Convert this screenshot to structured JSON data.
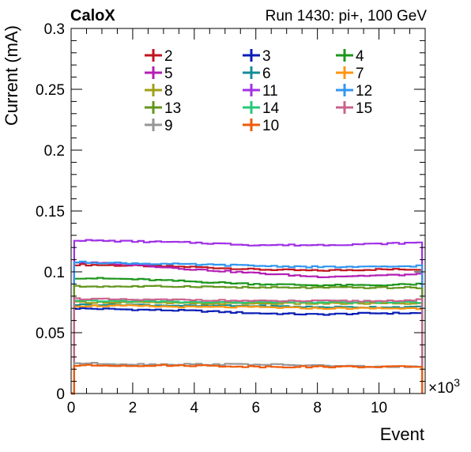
{
  "chart_data": {
    "type": "line",
    "title_left": "CaloX",
    "title_right": "Run 1430: pi+, 100 GeV",
    "xlabel": "Event",
    "ylabel": "Current (mA)",
    "x_multiplier": "×10",
    "x_multiplier_exp": "3",
    "xlim": [
      0,
      11.5
    ],
    "ylim": [
      0,
      0.3
    ],
    "x_ticks": [
      "0",
      "2",
      "4",
      "6",
      "8",
      "10"
    ],
    "y_ticks": [
      "0",
      "0.05",
      "0.1",
      "0.15",
      "0.2",
      "0.25",
      "0.3"
    ],
    "x_range": [
      0.1,
      11.4
    ],
    "series": [
      {
        "name": "2",
        "color": "#c0141e",
        "values": [
          [
            0.1,
            0.106
          ],
          [
            2,
            0.105
          ],
          [
            4,
            0.104
          ],
          [
            6,
            0.102
          ],
          [
            8,
            0.101
          ],
          [
            10,
            0.102
          ],
          [
            11.4,
            0.102
          ]
        ]
      },
      {
        "name": "3",
        "color": "#0a1eb4",
        "values": [
          [
            0.1,
            0.07
          ],
          [
            2,
            0.069
          ],
          [
            4,
            0.068
          ],
          [
            6,
            0.066
          ],
          [
            8,
            0.065
          ],
          [
            10,
            0.066
          ],
          [
            11.4,
            0.066
          ]
        ]
      },
      {
        "name": "4",
        "color": "#1e961e",
        "values": [
          [
            0.1,
            0.095
          ],
          [
            2,
            0.094
          ],
          [
            4,
            0.092
          ],
          [
            6,
            0.09
          ],
          [
            8,
            0.089
          ],
          [
            10,
            0.089
          ],
          [
            11.4,
            0.09
          ]
        ]
      },
      {
        "name": "5",
        "color": "#b41eb4",
        "values": [
          [
            0.1,
            0.108
          ],
          [
            2,
            0.106
          ],
          [
            4,
            0.102
          ],
          [
            6,
            0.099
          ],
          [
            8,
            0.096
          ],
          [
            10,
            0.097
          ],
          [
            11.4,
            0.098
          ]
        ]
      },
      {
        "name": "6",
        "color": "#148c96",
        "values": [
          [
            0.1,
            0.073
          ],
          [
            2,
            0.073
          ],
          [
            4,
            0.072
          ],
          [
            6,
            0.072
          ],
          [
            8,
            0.071
          ],
          [
            10,
            0.071
          ],
          [
            11.4,
            0.071
          ]
        ]
      },
      {
        "name": "7",
        "color": "#ff9614",
        "values": [
          [
            0.1,
            0.072
          ],
          [
            2,
            0.072
          ],
          [
            4,
            0.071
          ],
          [
            6,
            0.071
          ],
          [
            8,
            0.07
          ],
          [
            10,
            0.07
          ],
          [
            11.4,
            0.07
          ]
        ]
      },
      {
        "name": "8",
        "color": "#a0a014",
        "values": [
          [
            0.1,
            0.075
          ],
          [
            2,
            0.075
          ],
          [
            4,
            0.074
          ],
          [
            6,
            0.074
          ],
          [
            8,
            0.074
          ],
          [
            10,
            0.074
          ],
          [
            11.4,
            0.074
          ]
        ]
      },
      {
        "name": "11",
        "color": "#a032e6",
        "values": [
          [
            0.1,
            0.126
          ],
          [
            2,
            0.125
          ],
          [
            4,
            0.124
          ],
          [
            6,
            0.122
          ],
          [
            8,
            0.122
          ],
          [
            10,
            0.123
          ],
          [
            11.4,
            0.124
          ]
        ]
      },
      {
        "name": "12",
        "color": "#3296f0",
        "values": [
          [
            0.1,
            0.108
          ],
          [
            2,
            0.107
          ],
          [
            4,
            0.106
          ],
          [
            6,
            0.105
          ],
          [
            8,
            0.104
          ],
          [
            10,
            0.104
          ],
          [
            11.4,
            0.105
          ]
        ]
      },
      {
        "name": "13",
        "color": "#64961e",
        "values": [
          [
            0.1,
            0.088
          ],
          [
            2,
            0.088
          ],
          [
            4,
            0.088
          ],
          [
            6,
            0.087
          ],
          [
            8,
            0.087
          ],
          [
            10,
            0.087
          ],
          [
            11.4,
            0.087
          ]
        ]
      },
      {
        "name": "14",
        "color": "#28c878",
        "values": [
          [
            0.1,
            0.076
          ],
          [
            2,
            0.076
          ],
          [
            4,
            0.075
          ],
          [
            6,
            0.075
          ],
          [
            8,
            0.075
          ],
          [
            10,
            0.075
          ],
          [
            11.4,
            0.075
          ]
        ]
      },
      {
        "name": "15",
        "color": "#c8648c",
        "values": [
          [
            0.1,
            0.078
          ],
          [
            2,
            0.077
          ],
          [
            4,
            0.077
          ],
          [
            6,
            0.076
          ],
          [
            8,
            0.076
          ],
          [
            10,
            0.076
          ],
          [
            11.4,
            0.077
          ]
        ]
      },
      {
        "name": "9",
        "color": "#969696",
        "values": [
          [
            0.1,
            0.025
          ],
          [
            2,
            0.024
          ],
          [
            4,
            0.024
          ],
          [
            6,
            0.024
          ],
          [
            8,
            0.023
          ],
          [
            10,
            0.022
          ],
          [
            11.4,
            0.022
          ]
        ]
      },
      {
        "name": "10",
        "color": "#f05a0a",
        "values": [
          [
            0.1,
            0.023
          ],
          [
            2,
            0.023
          ],
          [
            4,
            0.023
          ],
          [
            6,
            0.022
          ],
          [
            8,
            0.022
          ],
          [
            10,
            0.022
          ],
          [
            11.4,
            0.022
          ]
        ]
      }
    ],
    "legend": [
      [
        "2",
        "3",
        "4"
      ],
      [
        "5",
        "6",
        "7"
      ],
      [
        "8",
        "11",
        "12"
      ],
      [
        "13",
        "14",
        "15"
      ],
      [
        "9",
        "10"
      ]
    ],
    "grid": false,
    "legend_placement": "top-center"
  }
}
